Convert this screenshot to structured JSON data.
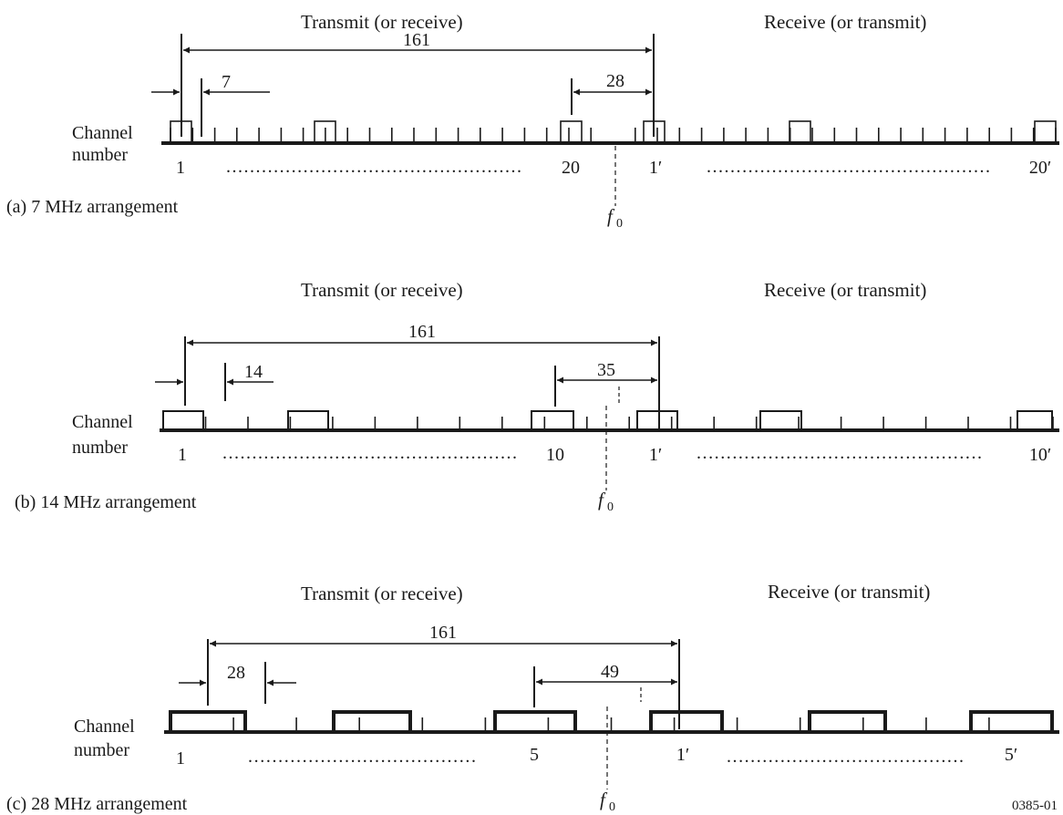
{
  "header_left": "Transmit (or receive)",
  "header_right": "Receive (or transmit)",
  "channel_label": [
    "Channel",
    "number"
  ],
  "f0": {
    "symbol": "f",
    "subscript": "0"
  },
  "figure_ref": "0385-01",
  "dot_leader": ".",
  "diagrams": [
    {
      "caption": "(a) 7 MHz arrangement",
      "span": "161",
      "spacing": "7",
      "center_gap": "28",
      "first_channel": "1",
      "last_tx_channel": "20",
      "first_rx_channel": "1′",
      "last_rx_channel": "20′",
      "total_channels": 20
    },
    {
      "caption": "(b) 14 MHz arrangement",
      "span": "161",
      "spacing": "14",
      "center_gap": "35",
      "first_channel": "1",
      "last_tx_channel": "10",
      "first_rx_channel": "1′",
      "last_rx_channel": "10′",
      "total_channels": 10
    },
    {
      "caption": "(c) 28 MHz arrangement",
      "span": "161",
      "spacing": "28",
      "center_gap": "49",
      "first_channel": "1",
      "last_tx_channel": "5",
      "first_rx_channel": "1′",
      "last_rx_channel": "5′",
      "total_channels": 5
    }
  ]
}
